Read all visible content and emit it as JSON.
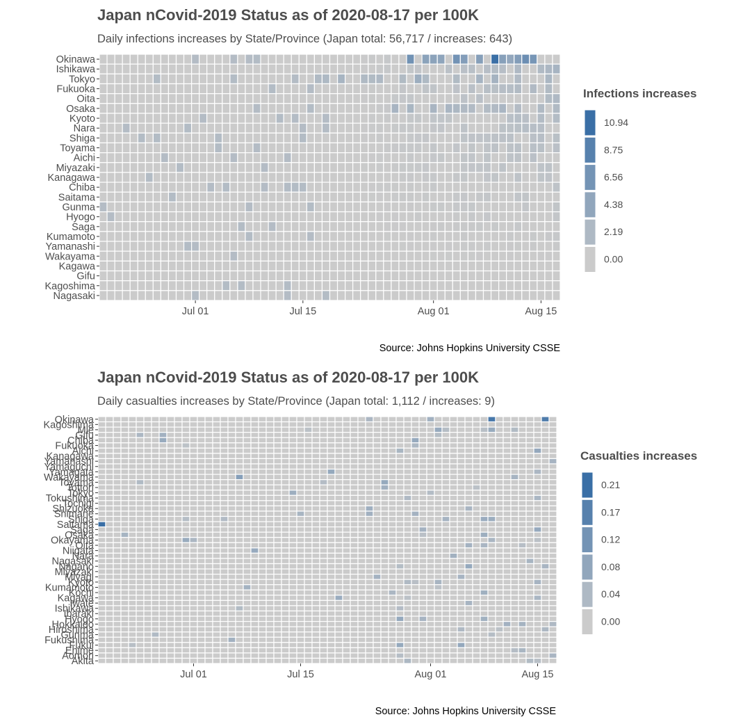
{
  "colors": {
    "zero": "#cbcbcb",
    "max": "#3a6fa6",
    "grid": "#ffffff",
    "panel_bg": "#ebebeb",
    "text": "#4d4d4d"
  },
  "chart_data": [
    {
      "type": "heatmap",
      "title": "Japan nCovid-2019 Status as of 2020-08-17 per 100K",
      "subtitle": "Daily infections increases by State/Province (Japan total: 56,717 / increases: 643)",
      "caption": "Source: Johns Hopkins University CSSE",
      "x_start": "2020-06-19",
      "x_end": "2020-08-17",
      "x_ticks": [
        "Jul 01",
        "Jul 15",
        "Aug 01",
        "Aug 15"
      ],
      "rows": [
        "Okinawa",
        "Ishikawa",
        "Tokyo",
        "Fukuoka",
        "Oita",
        "Osaka",
        "Kyoto",
        "Nara",
        "Shiga",
        "Toyama",
        "Aichi",
        "Miyazaki",
        "Kanagawa",
        "Chiba",
        "Saitama",
        "Gunma",
        "Hyogo",
        "Saga",
        "Kumamoto",
        "Yamanashi",
        "Wakayama",
        "Kagawa",
        "Gifu",
        "Kagoshima",
        "Nagasaki"
      ],
      "legend": {
        "title": "Infections increases",
        "breaks": [
          "10.94",
          "8.75",
          "6.56",
          "4.38",
          "2.19",
          "0.00"
        ]
      },
      "max_value": 10.94,
      "notable_values": [
        {
          "row": "Okinawa",
          "date": "2020-08-09",
          "value": 10.94
        },
        {
          "row": "Okinawa",
          "date": "2020-08-13",
          "value": 7.2
        },
        {
          "row": "Okinawa",
          "date": "2020-08-14",
          "value": 6.3
        },
        {
          "row": "Tokyo",
          "date": "2020-07-30",
          "value": 3.5
        },
        {
          "row": "Osaka",
          "date": "2020-08-01",
          "value": 2.6
        }
      ]
    },
    {
      "type": "heatmap",
      "title": "Japan nCovid-2019 Status as of 2020-08-17 per 100K",
      "subtitle": "Daily casualties increases by State/Province (Japan total: 1,112 / increases: 9)",
      "caption": "Source: Johns Hopkins University CSSE",
      "x_start": "2020-06-19",
      "x_end": "2020-08-17",
      "x_ticks": [
        "Jul 01",
        "Jul 15",
        "Aug 01",
        "Aug 15"
      ],
      "rows": [
        "Okinawa",
        "Kagoshima",
        "Mie",
        "Gifu",
        "Chiba",
        "Fukuoka",
        "Aichi",
        "Kanagawa",
        "Yamanashi",
        "Yamaguchi",
        "Yamagata",
        "Wakayama",
        "Toyama",
        "Tottori",
        "Tokyo",
        "Tokushima",
        "Tochigi",
        "Shizuoka",
        "Shimane",
        "Shiga",
        "Saitama",
        "Saga",
        "Osaka",
        "Okayama",
        "Oita",
        "Niigata",
        "Nara",
        "Nagasaki",
        "Nagano",
        "Miyazaki",
        "Miyagi",
        "Kyoto",
        "Kumamoto",
        "Kochi",
        "Kagawa",
        "Iwate",
        "Ishikawa",
        "Ibaraki",
        "Hyogo",
        "Hokkaido",
        "Hiroshima",
        "Gunma",
        "Fukushima",
        "Fukui",
        "Ehime",
        "Aomori",
        "Akita"
      ],
      "legend": {
        "title": "Casualties increases",
        "breaks": [
          "0.21",
          "0.17",
          "0.12",
          "0.08",
          "0.04",
          "0.00"
        ]
      },
      "max_value": 0.21,
      "notable_values": [
        {
          "row": "Saitama",
          "date": "2020-06-19",
          "value": 0.21
        },
        {
          "row": "Okinawa",
          "date": "2020-08-09",
          "value": 0.19
        },
        {
          "row": "Okinawa",
          "date": "2020-08-16",
          "value": 0.18
        },
        {
          "row": "Wakayama",
          "date": "2020-07-07",
          "value": 0.1
        }
      ]
    }
  ]
}
